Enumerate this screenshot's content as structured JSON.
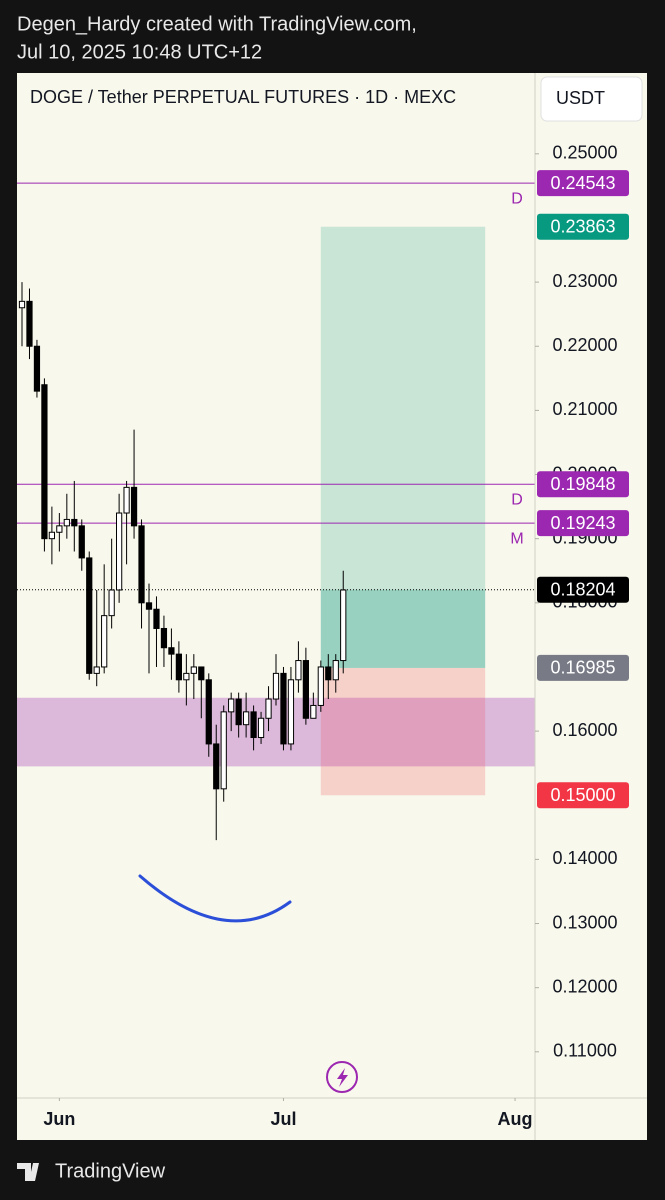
{
  "header": {
    "line1": "Degen_Hardy created with TradingView.com,",
    "line2": "Jul 10, 2025 10:48 UTC+12"
  },
  "footer": {
    "brand": "TradingView"
  },
  "chart_data": {
    "type": "candlestick",
    "title": "DOGE / Tether PERPETUAL FUTURES · 1D · MEXC",
    "currency": "USDT",
    "up_color": "#ffffff",
    "down_color": "#000000",
    "open": [
      0.226,
      0.227,
      0.22,
      0.214,
      0.19,
      0.191,
      0.192,
      0.193,
      0.192,
      0.187,
      0.169,
      0.17,
      0.178,
      0.182,
      0.194,
      0.198,
      0.192,
      0.18,
      0.179,
      0.176,
      0.173,
      0.172,
      0.168,
      0.169,
      0.17,
      0.168,
      0.158,
      0.151,
      0.163,
      0.165,
      0.161,
      0.163,
      0.159,
      0.162,
      0.165,
      0.169,
      0.158,
      0.168,
      0.171,
      0.162,
      0.164,
      0.17,
      0.168,
      0.171
    ],
    "high": [
      0.23,
      0.229,
      0.221,
      0.215,
      0.195,
      0.194,
      0.197,
      0.199,
      0.193,
      0.188,
      0.182,
      0.186,
      0.19,
      0.197,
      0.199,
      0.207,
      0.193,
      0.183,
      0.181,
      0.178,
      0.176,
      0.174,
      0.172,
      0.172,
      0.17,
      0.169,
      0.161,
      0.164,
      0.166,
      0.166,
      0.166,
      0.164,
      0.163,
      0.167,
      0.172,
      0.17,
      0.17,
      0.174,
      0.173,
      0.166,
      0.171,
      0.172,
      0.172,
      0.185
    ],
    "low": [
      0.22,
      0.218,
      0.212,
      0.188,
      0.186,
      0.188,
      0.19,
      0.188,
      0.185,
      0.168,
      0.167,
      0.169,
      0.176,
      0.18,
      0.186,
      0.19,
      0.176,
      0.169,
      0.17,
      0.17,
      0.168,
      0.166,
      0.164,
      0.165,
      0.162,
      0.156,
      0.143,
      0.149,
      0.16,
      0.159,
      0.159,
      0.157,
      0.158,
      0.16,
      0.164,
      0.157,
      0.157,
      0.166,
      0.161,
      0.162,
      0.163,
      0.165,
      0.166,
      0.169
    ],
    "close": [
      0.227,
      0.22,
      0.213,
      0.19,
      0.191,
      0.192,
      0.193,
      0.192,
      0.187,
      0.169,
      0.17,
      0.178,
      0.182,
      0.194,
      0.198,
      0.192,
      0.18,
      0.179,
      0.176,
      0.173,
      0.172,
      0.168,
      0.169,
      0.17,
      0.168,
      0.158,
      0.151,
      0.163,
      0.165,
      0.161,
      0.163,
      0.159,
      0.162,
      0.165,
      0.169,
      0.158,
      0.168,
      0.171,
      0.162,
      0.164,
      0.17,
      0.168,
      0.171,
      0.182
    ],
    "ylim": [
      0.1028,
      0.2626
    ],
    "yticks": [
      {
        "value": 0.25,
        "label": "0.25000"
      },
      {
        "value": 0.23,
        "label": "0.23000"
      },
      {
        "value": 0.22,
        "label": "0.22000"
      },
      {
        "value": 0.21,
        "label": "0.21000"
      },
      {
        "value": 0.2,
        "label": "0.20000"
      },
      {
        "value": 0.19,
        "label": "0.19000"
      },
      {
        "value": 0.18,
        "label": "0.18000"
      },
      {
        "value": 0.16,
        "label": "0.16000"
      },
      {
        "value": 0.14,
        "label": "0.14000"
      },
      {
        "value": 0.13,
        "label": "0.13000"
      },
      {
        "value": 0.12,
        "label": "0.12000"
      },
      {
        "value": 0.11,
        "label": "0.11000"
      }
    ],
    "xlim": [
      -0.67,
      68.67
    ],
    "xticks": [
      {
        "value": 5,
        "label": "Jun"
      },
      {
        "value": 35,
        "label": "Jul"
      },
      {
        "value": 66,
        "label": "Aug"
      }
    ],
    "hlines": [
      {
        "value": 0.24543,
        "tag": "D",
        "color": "#9c27b0"
      },
      {
        "value": 0.19848,
        "tag": "D",
        "color": "#9c27b0"
      },
      {
        "value": 0.19243,
        "tag": "M",
        "color": "#9c27b0"
      }
    ],
    "price_line": {
      "value": 0.18204,
      "color": "#000000"
    },
    "zone": {
      "low": 0.1545,
      "high": 0.1652,
      "color": "#9c27b0"
    },
    "position": {
      "from": 40,
      "to": 62,
      "entry": 0.16985,
      "target": 0.23863,
      "stop": {
        "value": 0.15,
        "label": "0.15000"
      },
      "entry_color": "#787b86",
      "target_color": "#089981",
      "stop_color": "#f23645"
    }
  }
}
